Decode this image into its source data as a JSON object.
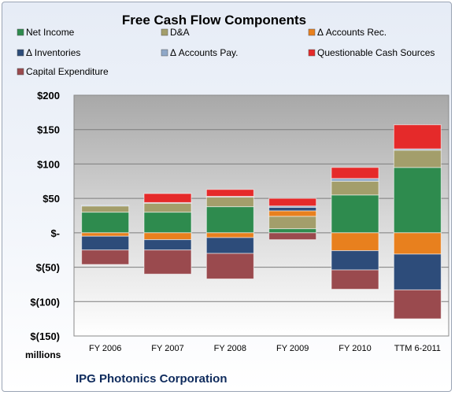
{
  "chart_data": {
    "type": "bar",
    "stacked": true,
    "title": "Free Cash Flow Components",
    "units_label": "millions",
    "company": "IPG Photonics Corporation",
    "categories": [
      "FY 2006",
      "FY 2007",
      "FY 2008",
      "FY 2009",
      "FY 2010",
      "TTM 6-2011"
    ],
    "ylim": [
      -150,
      200
    ],
    "yticks": [
      200,
      150,
      100,
      50,
      0,
      -50,
      -100,
      -150
    ],
    "ytick_labels": [
      "$200",
      "$150",
      "$100",
      "$50",
      "$-",
      "$(50)",
      "$(100)",
      "$(150)"
    ],
    "grid": true,
    "legend_position": "top",
    "series": [
      {
        "name": "Net Income",
        "color": "#2e8b4e",
        "values": [
          30,
          30,
          38,
          6,
          55,
          95
        ]
      },
      {
        "name": "D&A",
        "color": "#a39e6b",
        "values": [
          9,
          13,
          14,
          18,
          20,
          25
        ]
      },
      {
        "name": "Δ Accounts Rec.",
        "color": "#e8801e",
        "values": [
          -5,
          -10,
          -7,
          8,
          -26,
          -31
        ]
      },
      {
        "name": "Δ Inventories",
        "color": "#2d4c7a",
        "values": [
          -20,
          -15,
          -23,
          5,
          -28,
          -52
        ]
      },
      {
        "name": "Δ Accounts Pay.",
        "color": "#8fa8c8",
        "values": [
          1,
          1,
          1,
          2,
          4,
          2
        ]
      },
      {
        "name": "Questionable Cash Sources",
        "color": "#e52a2a",
        "values": [
          0,
          13,
          10,
          11,
          16,
          35
        ]
      },
      {
        "name": "Capital Expenditure",
        "color": "#9a4a4e",
        "values": [
          -21,
          -35,
          -37,
          -10,
          -28,
          -42
        ]
      }
    ]
  }
}
